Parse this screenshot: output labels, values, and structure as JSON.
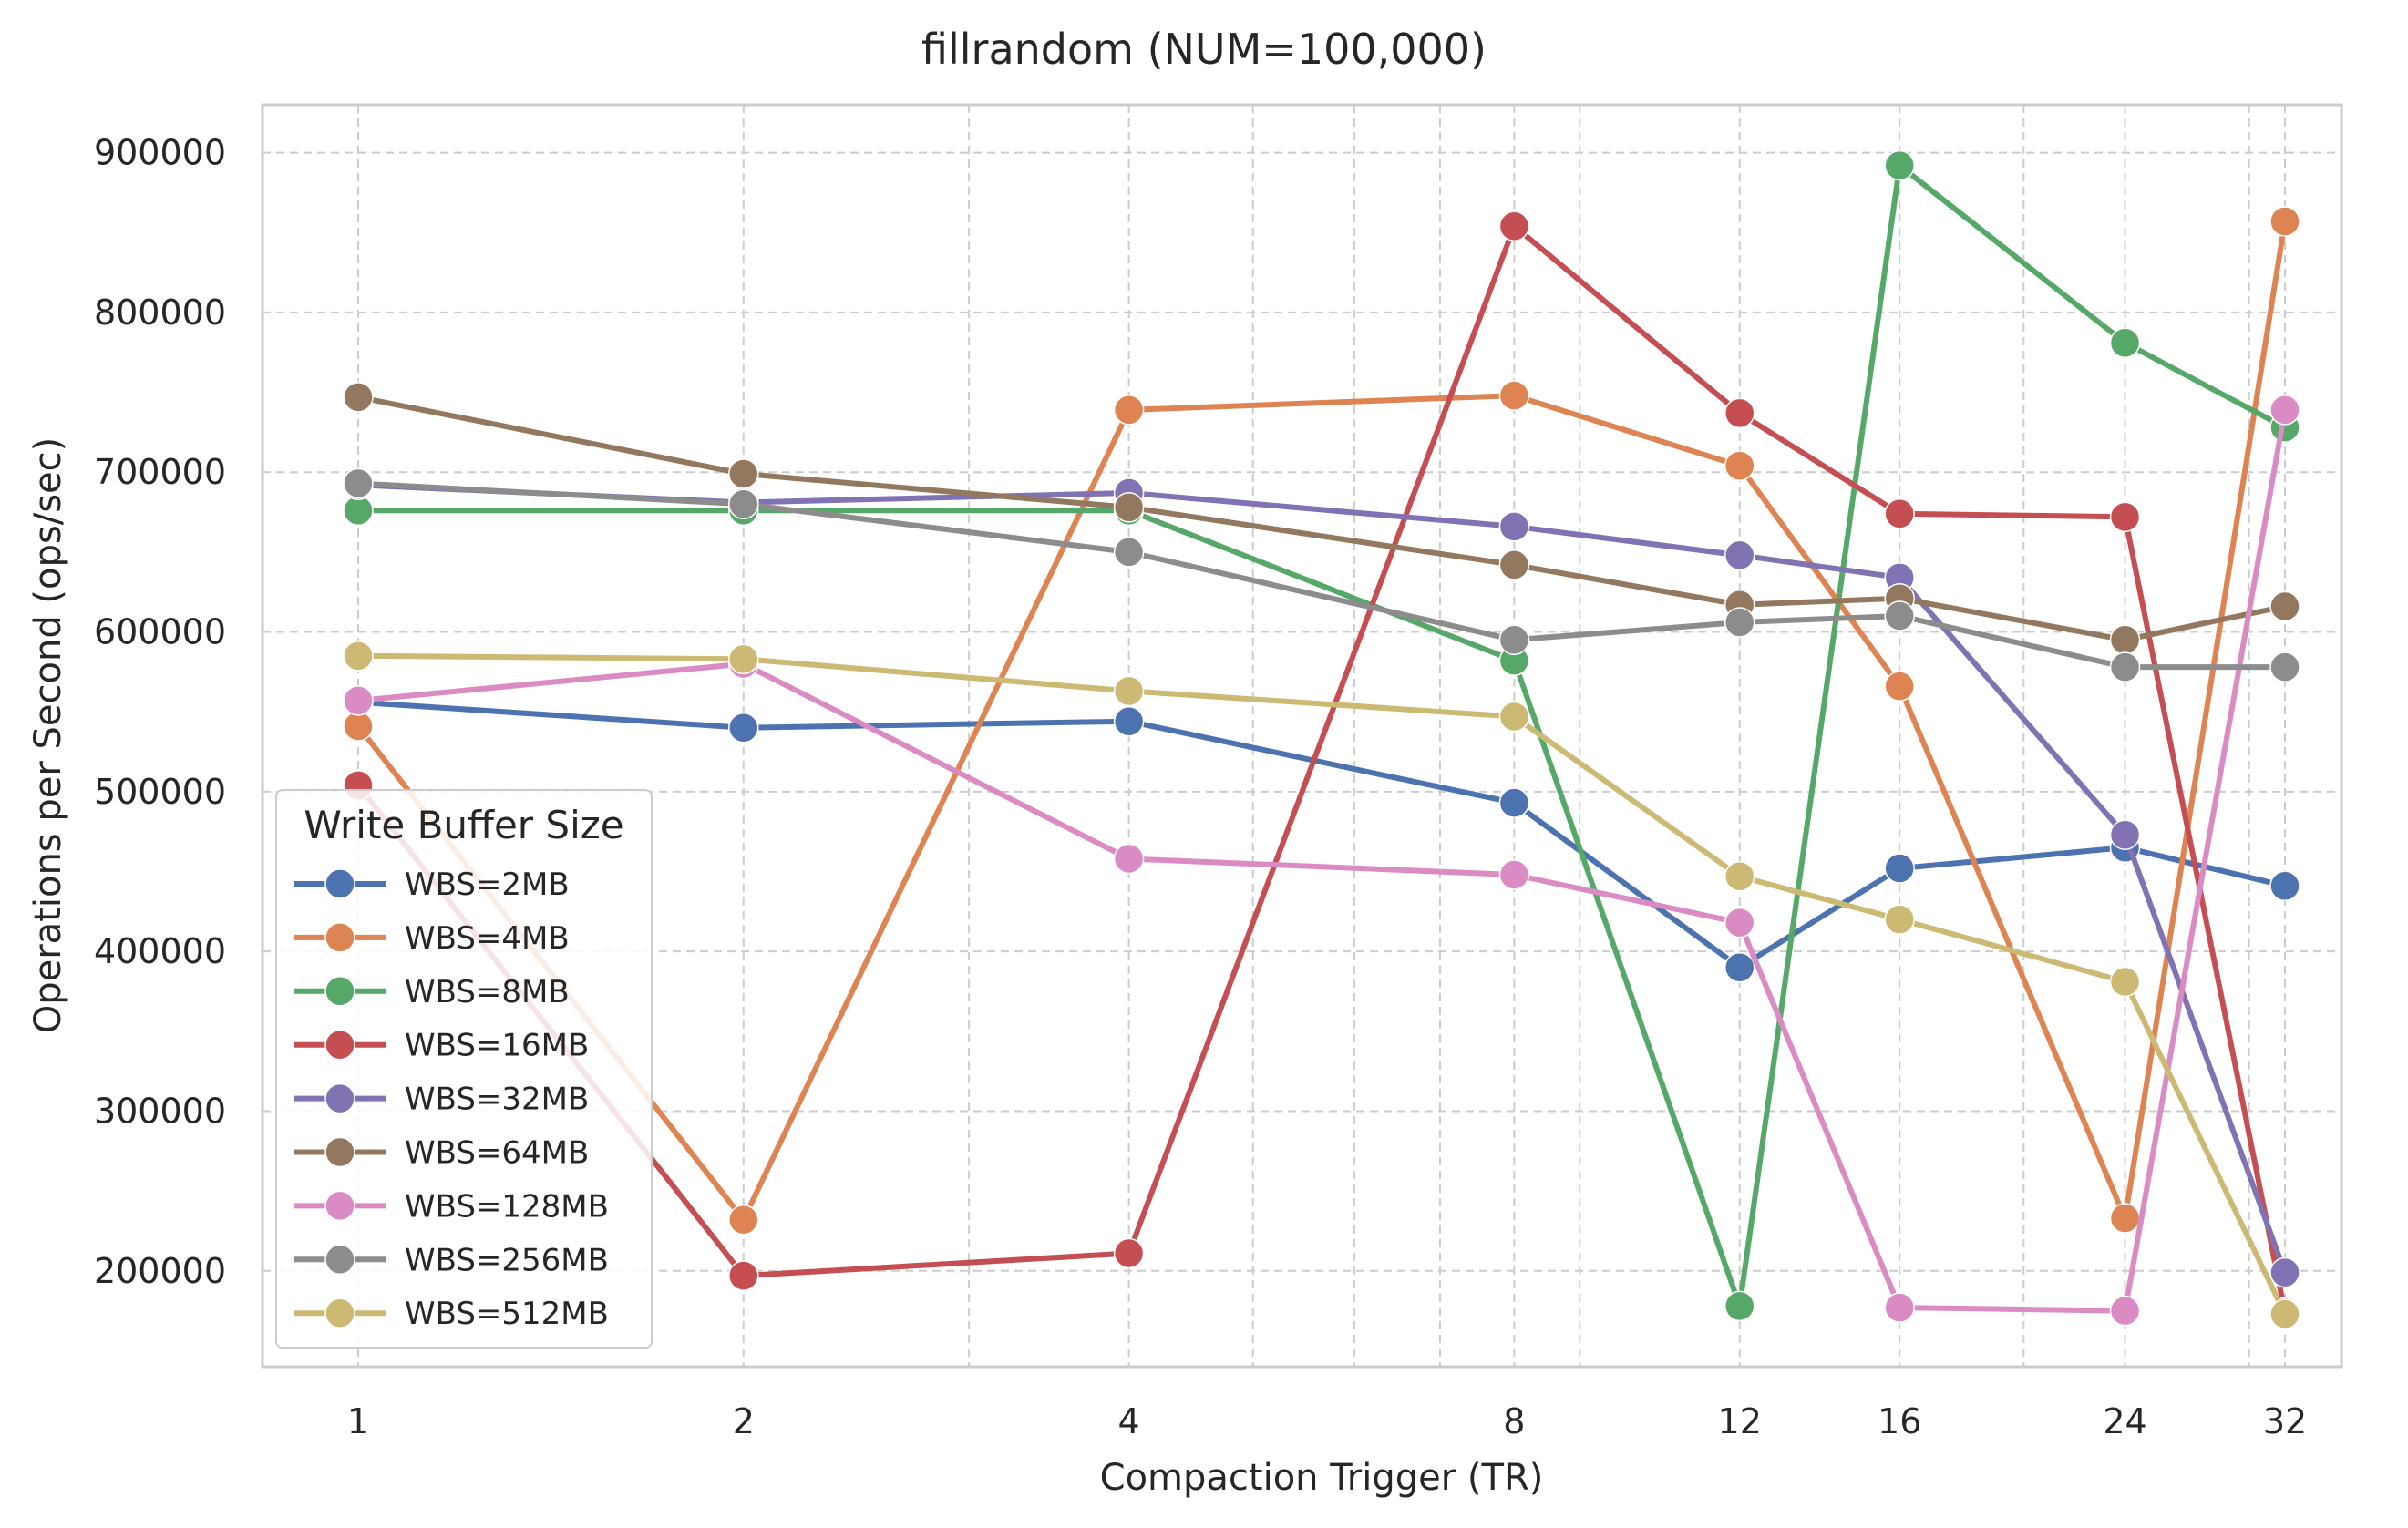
{
  "chart_data": {
    "type": "line",
    "title": "fillrandom (NUM=100,000)",
    "xlabel": "Compaction Trigger (TR)",
    "ylabel": "Operations per Second (ops/sec)",
    "x_scale": "log2",
    "x": [
      1,
      2,
      4,
      8,
      12,
      16,
      24,
      32
    ],
    "x_tick_labels": [
      "1",
      "2",
      "4",
      "8",
      "12",
      "16",
      "24",
      "32"
    ],
    "y_ticks": [
      200000,
      300000,
      400000,
      500000,
      600000,
      700000,
      800000,
      900000
    ],
    "y_tick_labels": [
      "200000",
      "300000",
      "400000",
      "500000",
      "600000",
      "700000",
      "800000",
      "900000"
    ],
    "ylim": [
      140000,
      930000
    ],
    "grid": true,
    "legend": {
      "title": "Write Buffer Size",
      "placement": "lower-left"
    },
    "series": [
      {
        "name": "WBS=2MB",
        "color": "#4c72b0",
        "values": [
          556000,
          540000,
          544000,
          493000,
          390000,
          452000,
          465000,
          441000
        ]
      },
      {
        "name": "WBS=4MB",
        "color": "#dd8452",
        "values": [
          541000,
          232000,
          739000,
          748000,
          704000,
          566000,
          233000,
          857000
        ]
      },
      {
        "name": "WBS=8MB",
        "color": "#55a868",
        "values": [
          676000,
          676000,
          676000,
          582000,
          178000,
          892000,
          781000,
          728000
        ]
      },
      {
        "name": "WBS=16MB",
        "color": "#c44e52",
        "values": [
          504000,
          197000,
          211000,
          854000,
          737000,
          674000,
          672000,
          174000
        ]
      },
      {
        "name": "WBS=32MB",
        "color": "#8172b3",
        "values": [
          692000,
          681000,
          687000,
          666000,
          648000,
          634000,
          473000,
          199000
        ]
      },
      {
        "name": "WBS=64MB",
        "color": "#937860",
        "values": [
          747000,
          699000,
          678000,
          642000,
          617000,
          621000,
          595000,
          616000
        ]
      },
      {
        "name": "WBS=128MB",
        "color": "#da8bc3",
        "values": [
          557000,
          580000,
          458000,
          448000,
          418000,
          177000,
          175000,
          739000
        ]
      },
      {
        "name": "WBS=256MB",
        "color": "#8c8c8c",
        "values": [
          693000,
          680000,
          650000,
          595000,
          606000,
          610000,
          578000,
          578000
        ]
      },
      {
        "name": "WBS=512MB",
        "color": "#ccb974",
        "values": [
          585000,
          583000,
          563000,
          547000,
          447000,
          420000,
          381000,
          173000
        ]
      }
    ]
  }
}
